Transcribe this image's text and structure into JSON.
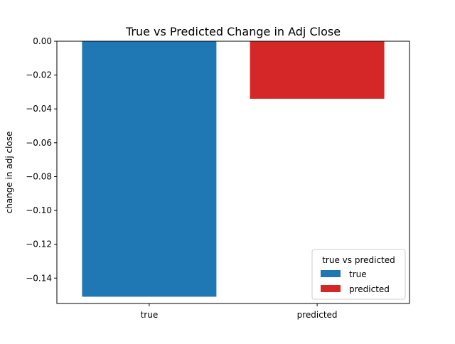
{
  "chart_data": {
    "type": "bar",
    "title": "True vs Predicted Change in Adj Close",
    "xlabel": "",
    "ylabel": "change in adj close",
    "categories": [
      "true",
      "predicted"
    ],
    "values": [
      -0.151,
      -0.034
    ],
    "colors": [
      "#1f77b4",
      "#d62728"
    ],
    "ylim": [
      -0.155,
      0.0
    ],
    "yticks": [
      0.0,
      -0.02,
      -0.04,
      -0.06,
      -0.08,
      -0.1,
      -0.12,
      -0.14
    ],
    "ytick_labels": [
      "0.00",
      "−0.02",
      "−0.04",
      "−0.06",
      "−0.08",
      "−0.10",
      "−0.12",
      "−0.14"
    ],
    "grid": false,
    "legend": {
      "title": "true vs predicted",
      "placement": "lower-right",
      "entries": [
        {
          "label": "true",
          "color": "#1f77b4"
        },
        {
          "label": "predicted",
          "color": "#d62728"
        }
      ]
    }
  }
}
